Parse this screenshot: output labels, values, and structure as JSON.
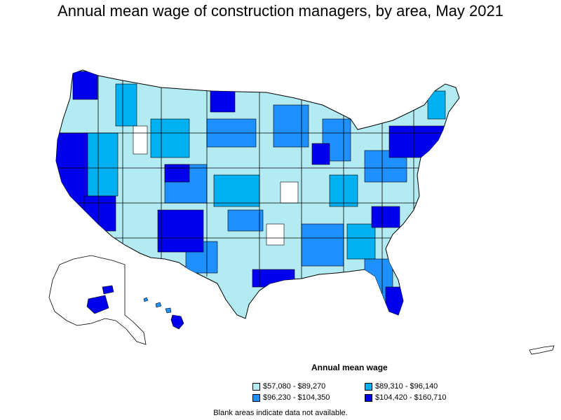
{
  "title": "Annual mean wage of construction managers, by area, May 2021",
  "legend": {
    "title": "Annual mean wage",
    "items": [
      {
        "label": "$57,080 - $89,270",
        "color": "#b2ebf2"
      },
      {
        "label": "$89,310 - $96,140",
        "color": "#00b0f0"
      },
      {
        "label": "$96,230 - $104,350",
        "color": "#1e90ff"
      },
      {
        "label": "$104,420 - $160,710",
        "color": "#0000ee"
      }
    ]
  },
  "note": "Blank areas indicate data not available.",
  "colors": {
    "tier1": "#b2ebf2",
    "tier2": "#00b0f0",
    "tier3": "#1e90ff",
    "tier4": "#0000ee",
    "blank": "#ffffff",
    "border": "#000000"
  }
}
